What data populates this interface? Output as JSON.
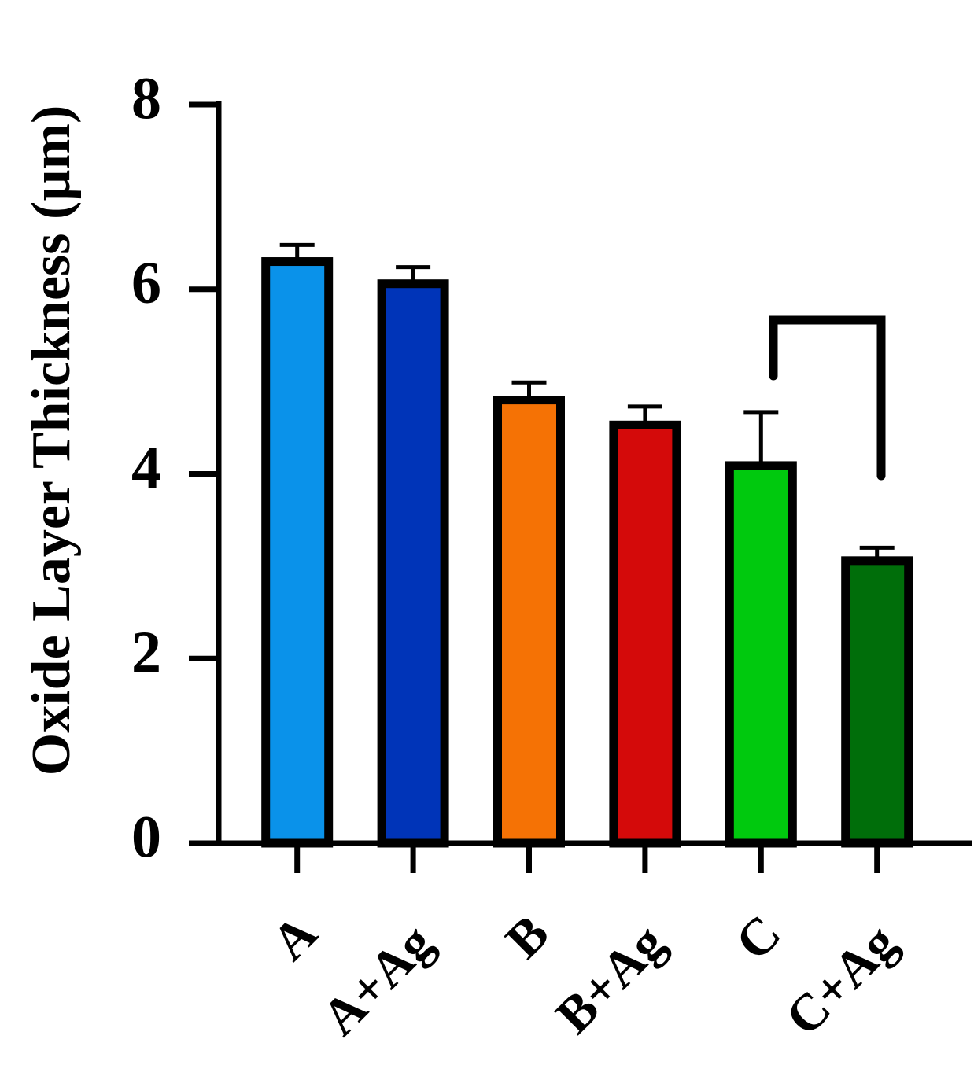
{
  "chart_data": {
    "type": "bar",
    "y_label": "Oxide Layer Thickness (µm)",
    "categories": [
      "A",
      "A+Ag",
      "B",
      "B+Ag",
      "C",
      "C+Ag"
    ],
    "values": [
      6.3,
      6.06,
      4.8,
      4.53,
      4.09,
      3.06
    ],
    "errors": [
      0.18,
      0.18,
      0.19,
      0.2,
      0.58,
      0.14
    ],
    "colors": [
      "#0a92ea",
      "#0034b8",
      "#f57205",
      "#d40a0a",
      "#00c90e",
      "#006e0a"
    ],
    "ylim": [
      0,
      8
    ],
    "yticks": [
      0,
      2,
      4,
      6,
      8
    ],
    "grid": false
  }
}
